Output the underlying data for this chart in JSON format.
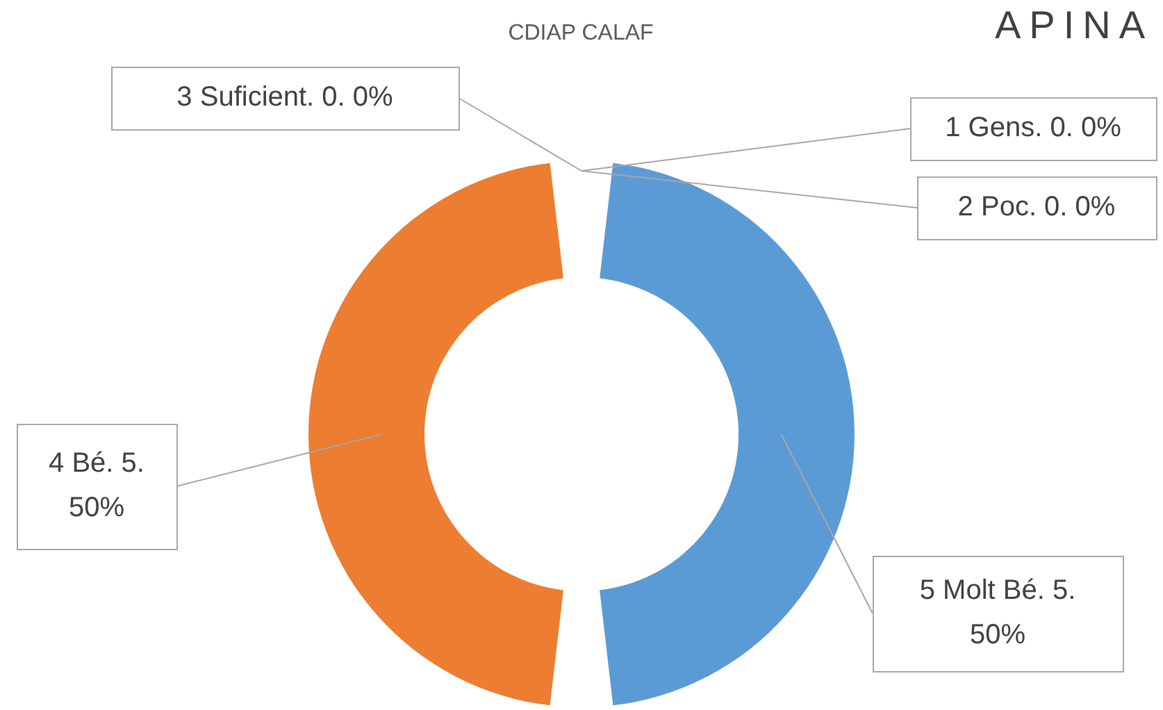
{
  "chart_data": {
    "type": "donut",
    "title": "CDIAP CALAF",
    "categories": [
      "1 Gens",
      "2 Poc",
      "3 Suficient",
      "4 Bé",
      "5 Molt Bé"
    ],
    "values": [
      0,
      0,
      0,
      5,
      5
    ],
    "value_labels": [
      ". 0. 0%",
      ". 0. 0%",
      ". 0. 0%",
      ". 5.\n50%",
      ". 5.\n50%"
    ],
    "colors": [
      "#4472c4",
      "#a5a5a5",
      "#ffc000",
      "#ed7d31",
      "#5b9bd5"
    ],
    "annotations": [
      "APINA"
    ],
    "legend": false
  }
}
